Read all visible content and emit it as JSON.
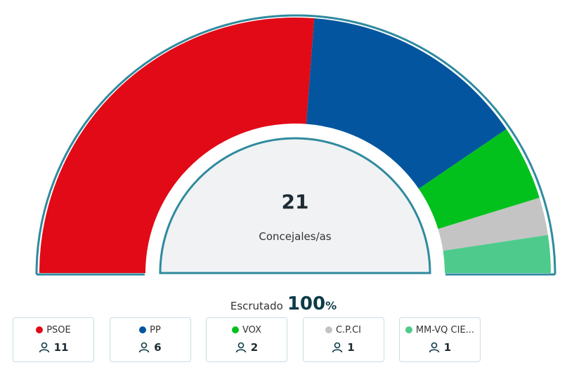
{
  "chart_data": {
    "type": "pie",
    "categories": [
      "PSOE",
      "PP",
      "VOX",
      "C.P.CI",
      "MM-VQ CIE..."
    ],
    "values": [
      11,
      6,
      2,
      1,
      1
    ],
    "colors": [
      "#e20a17",
      "#04559f",
      "#03c11d",
      "#c4c4c4",
      "#4ecb8c"
    ],
    "total": 21,
    "total_label": "Concejales/as",
    "scrutiny_label": "Escrutado",
    "scrutiny_value": 100,
    "scrutiny_unit": "%"
  }
}
